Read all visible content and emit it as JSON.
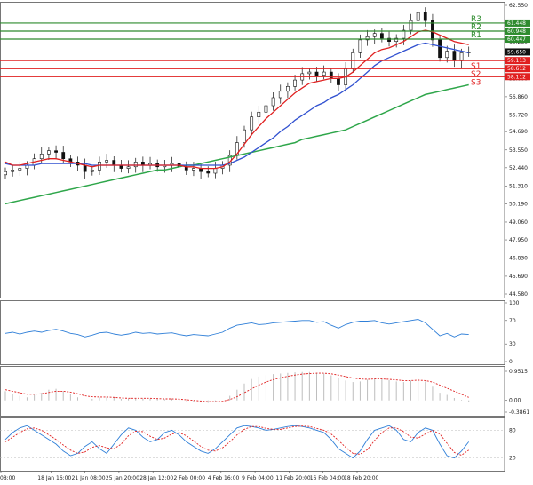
{
  "chart_data": {
    "type": "candlestick",
    "main": {
      "y_ticks": [
        "62.550",
        "61.420",
        "60.280",
        "59.130",
        "58.000",
        "56.860",
        "55.720",
        "54.690",
        "53.550",
        "52.440",
        "51.310",
        "50.190",
        "49.060",
        "47.950",
        "46.830",
        "45.690",
        "44.580"
      ],
      "y_top": 62.55,
      "y_bottom": 44.58,
      "current_price": {
        "value": 59.65,
        "label": "59.650"
      },
      "levels": [
        {
          "name": "R3",
          "value": 61.448,
          "label": "61.448",
          "color": "#2e8b2e"
        },
        {
          "name": "R2",
          "value": 60.948,
          "label": "60.948",
          "color": "#2e8b2e"
        },
        {
          "name": "R1",
          "value": 60.447,
          "label": "60.447",
          "color": "#2e8b2e"
        },
        {
          "name": "S1",
          "value": 59.113,
          "label": "59.113",
          "color": "#e02020"
        },
        {
          "name": "S2",
          "value": 58.612,
          "label": "58.612",
          "color": "#e02020"
        },
        {
          "name": "S3",
          "value": 58.112,
          "label": "58.112",
          "color": "#e02020"
        }
      ],
      "close_path": [
        52.2,
        52.3,
        52.4,
        52.6,
        53.0,
        53.3,
        53.5,
        53.4,
        53.0,
        52.8,
        52.6,
        52.2,
        52.3,
        52.8,
        52.9,
        52.6,
        52.4,
        52.5,
        52.8,
        52.6,
        52.7,
        52.5,
        52.6,
        52.7,
        52.5,
        52.3,
        52.4,
        52.2,
        52.1,
        52.4,
        52.6,
        53.2,
        54.0,
        54.8,
        55.6,
        55.9,
        56.3,
        56.8,
        57.2,
        57.5,
        57.9,
        58.3,
        58.4,
        58.2,
        58.4,
        58.0,
        57.6,
        58.6,
        59.6,
        60.4,
        60.6,
        60.8,
        60.5,
        60.3,
        60.5,
        61.0,
        61.6,
        62.1,
        61.6,
        60.4,
        59.3,
        59.7,
        59.1,
        59.6,
        59.65
      ],
      "ma_short": [
        52.8,
        52.6,
        52.6,
        52.7,
        52.8,
        52.9,
        53.0,
        53.0,
        52.9,
        52.8,
        52.7,
        52.6,
        52.5,
        52.6,
        52.6,
        52.6,
        52.6,
        52.6,
        52.6,
        52.6,
        52.6,
        52.6,
        52.6,
        52.6,
        52.6,
        52.5,
        52.5,
        52.4,
        52.4,
        52.4,
        52.5,
        52.8,
        53.3,
        53.9,
        54.5,
        55.0,
        55.5,
        55.9,
        56.3,
        56.7,
        57.1,
        57.4,
        57.7,
        57.8,
        57.9,
        58.0,
        58.0,
        58.1,
        58.4,
        58.8,
        59.2,
        59.6,
        59.8,
        59.9,
        60.1,
        60.3,
        60.6,
        60.9,
        61.0,
        60.9,
        60.7,
        60.5,
        60.3,
        60.2,
        60.1
      ],
      "ma_mid": [
        52.7,
        52.6,
        52.6,
        52.6,
        52.6,
        52.7,
        52.7,
        52.7,
        52.7,
        52.7,
        52.7,
        52.7,
        52.6,
        52.6,
        52.6,
        52.6,
        52.6,
        52.6,
        52.6,
        52.6,
        52.6,
        52.6,
        52.6,
        52.6,
        52.6,
        52.6,
        52.6,
        52.6,
        52.6,
        52.6,
        52.6,
        52.7,
        52.9,
        53.1,
        53.4,
        53.7,
        54.0,
        54.3,
        54.7,
        55.0,
        55.4,
        55.7,
        56.0,
        56.3,
        56.5,
        56.8,
        57.0,
        57.3,
        57.6,
        58.0,
        58.4,
        58.8,
        59.1,
        59.3,
        59.5,
        59.7,
        59.9,
        60.1,
        60.2,
        60.1,
        60.0,
        59.9,
        59.8,
        59.7,
        59.6
      ],
      "ma_long": [
        50.2,
        50.3,
        50.4,
        50.5,
        50.6,
        50.7,
        50.8,
        50.9,
        51.0,
        51.1,
        51.2,
        51.3,
        51.4,
        51.5,
        51.6,
        51.7,
        51.8,
        51.9,
        52.0,
        52.1,
        52.2,
        52.3,
        52.3,
        52.4,
        52.5,
        52.6,
        52.6,
        52.7,
        52.8,
        52.9,
        53.0,
        53.1,
        53.2,
        53.3,
        53.4,
        53.5,
        53.6,
        53.7,
        53.8,
        53.9,
        54.0,
        54.2,
        54.3,
        54.4,
        54.5,
        54.6,
        54.7,
        54.8,
        55.0,
        55.2,
        55.4,
        55.6,
        55.8,
        56.0,
        56.2,
        56.4,
        56.6,
        56.8,
        57.0,
        57.1,
        57.2,
        57.3,
        57.4,
        57.5,
        57.6
      ]
    },
    "rsi": {
      "y_ticks": [
        "100",
        "70",
        "30",
        "0"
      ],
      "values": [
        48,
        50,
        47,
        50,
        52,
        50,
        53,
        55,
        52,
        48,
        46,
        42,
        45,
        49,
        50,
        47,
        45,
        47,
        50,
        48,
        49,
        47,
        48,
        49,
        46,
        44,
        46,
        45,
        44,
        47,
        50,
        57,
        62,
        64,
        66,
        63,
        64,
        66,
        67,
        68,
        69,
        70,
        70,
        67,
        68,
        62,
        57,
        63,
        67,
        69,
        69,
        70,
        66,
        64,
        66,
        68,
        70,
        72,
        66,
        55,
        44,
        48,
        42,
        47,
        46
      ],
      "ylim": [
        0,
        100
      ]
    },
    "macd": {
      "y_ticks": [
        "0.9515",
        "0.00",
        "-0.3861"
      ],
      "histogram": [
        0.3,
        0.2,
        0.15,
        0.1,
        0.18,
        0.25,
        0.35,
        0.38,
        0.3,
        0.2,
        0.1,
        0.0,
        0.05,
        0.1,
        0.12,
        0.1,
        0.05,
        0.06,
        0.08,
        0.06,
        0.06,
        0.05,
        0.04,
        0.05,
        0.02,
        -0.02,
        -0.04,
        -0.06,
        -0.08,
        -0.05,
        0.0,
        0.15,
        0.35,
        0.55,
        0.7,
        0.78,
        0.83,
        0.86,
        0.88,
        0.9,
        0.92,
        0.93,
        0.93,
        0.9,
        0.88,
        0.82,
        0.72,
        0.65,
        0.6,
        0.62,
        0.68,
        0.72,
        0.7,
        0.66,
        0.62,
        0.6,
        0.65,
        0.7,
        0.62,
        0.45,
        0.25,
        0.18,
        0.08,
        0.02,
        -0.05
      ],
      "signal": [
        0.35,
        0.3,
        0.25,
        0.2,
        0.2,
        0.22,
        0.26,
        0.3,
        0.3,
        0.27,
        0.22,
        0.15,
        0.12,
        0.11,
        0.11,
        0.1,
        0.08,
        0.07,
        0.07,
        0.07,
        0.07,
        0.06,
        0.05,
        0.05,
        0.04,
        0.02,
        0.0,
        -0.02,
        -0.04,
        -0.04,
        -0.03,
        0.03,
        0.12,
        0.25,
        0.38,
        0.5,
        0.6,
        0.68,
        0.74,
        0.79,
        0.83,
        0.86,
        0.88,
        0.89,
        0.89,
        0.87,
        0.83,
        0.78,
        0.73,
        0.7,
        0.69,
        0.7,
        0.7,
        0.69,
        0.67,
        0.65,
        0.65,
        0.66,
        0.65,
        0.6,
        0.5,
        0.4,
        0.3,
        0.2,
        0.1
      ],
      "ylim": [
        -0.3861,
        0.9515
      ]
    },
    "stochastic": {
      "y_ticks": [
        "80",
        "20"
      ],
      "k": [
        60,
        75,
        85,
        90,
        80,
        70,
        60,
        50,
        35,
        25,
        30,
        45,
        55,
        40,
        30,
        50,
        70,
        85,
        80,
        65,
        55,
        60,
        75,
        80,
        70,
        55,
        45,
        35,
        30,
        40,
        55,
        70,
        85,
        90,
        88,
        85,
        80,
        82,
        85,
        88,
        90,
        88,
        85,
        80,
        75,
        60,
        40,
        30,
        20,
        35,
        60,
        80,
        85,
        90,
        80,
        60,
        55,
        75,
        85,
        80,
        50,
        25,
        20,
        35,
        55
      ],
      "d": [
        55,
        65,
        75,
        83,
        85,
        80,
        70,
        60,
        48,
        37,
        30,
        33,
        43,
        47,
        42,
        40,
        50,
        68,
        78,
        77,
        67,
        60,
        63,
        72,
        75,
        68,
        57,
        45,
        37,
        35,
        42,
        55,
        70,
        82,
        88,
        88,
        84,
        82,
        82,
        85,
        88,
        89,
        88,
        84,
        80,
        72,
        58,
        43,
        30,
        28,
        38,
        58,
        75,
        85,
        85,
        77,
        65,
        63,
        72,
        80,
        72,
        52,
        32,
        26,
        37
      ],
      "ylim": [
        0,
        100
      ]
    },
    "x_ticks": [
      "08:00",
      "18 Jan 16:00",
      "21 Jan 08:00",
      "25 Jan 20:00",
      "28 Jan 12:00",
      "2 Feb 00:00",
      "4 Feb 16:00",
      "9 Feb 04:00",
      "11 Feb 20:00",
      "16 Feb 04:00",
      "18 Feb 20:00"
    ],
    "colors": {
      "ma_short": "#e02020",
      "ma_mid": "#3050d0",
      "ma_long": "#2ea64a",
      "rsi": "#2f7fd8",
      "macd_signal": "#e02020",
      "macd_hist": "#bdbdbd",
      "stoch_k": "#2f7fd8",
      "stoch_d": "#e02020",
      "current_tag": "#111111"
    }
  }
}
